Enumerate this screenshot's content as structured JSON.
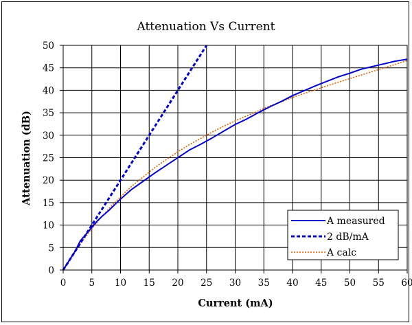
{
  "chart_data": {
    "type": "line",
    "title": "Attenuation Vs Current",
    "xlabel": "Current (mA)",
    "ylabel": "Attenuation (dB)",
    "xlim": [
      0,
      60
    ],
    "ylim": [
      0,
      50
    ],
    "x_ticks": [
      "0",
      "5",
      "10",
      "15",
      "20",
      "25",
      "30",
      "35",
      "40",
      "45",
      "50",
      "55",
      "60"
    ],
    "y_ticks": [
      "0",
      "5",
      "10",
      "15",
      "20",
      "25",
      "30",
      "35",
      "40",
      "45",
      "50"
    ],
    "grid": true,
    "legend_position": "bottom-right",
    "series": [
      {
        "name": "A measured",
        "color": "#0000cc",
        "style": "solid",
        "x": [
          0,
          1,
          2,
          3,
          4,
          5,
          6,
          7,
          8,
          10,
          12,
          14,
          16,
          18,
          20,
          22,
          24,
          26,
          28,
          30,
          32,
          34,
          36,
          38,
          40,
          42,
          44,
          46,
          48,
          50,
          52,
          54,
          56,
          58,
          60
        ],
        "y": [
          0,
          2,
          4,
          6.5,
          8,
          9.5,
          11,
          12.2,
          13.3,
          15.8,
          18,
          19.8,
          21.6,
          23.3,
          25,
          26.7,
          28,
          29.4,
          30.9,
          32.4,
          33.6,
          35,
          36.3,
          37.5,
          38.8,
          39.9,
          41,
          42,
          43,
          43.8,
          44.7,
          45.3,
          45.9,
          46.5,
          46.9
        ]
      },
      {
        "name": "2 dB/mA",
        "color": "#0000cc",
        "style": "dashed",
        "x": [
          0,
          25
        ],
        "y": [
          0,
          50
        ]
      },
      {
        "name": "A calc",
        "color": "#e06000",
        "style": "dotted",
        "x": [
          0,
          2,
          4,
          6,
          8,
          10,
          12,
          14,
          16,
          18,
          20,
          22,
          24,
          26,
          28,
          30,
          32,
          34,
          36,
          38,
          40,
          42,
          44,
          46,
          48,
          50,
          52,
          54,
          56,
          58,
          60
        ],
        "y": [
          0,
          3.9,
          7.6,
          10.8,
          13.7,
          16.3,
          18.7,
          20.8,
          22.8,
          24.6,
          26.3,
          27.9,
          29.3,
          30.7,
          32,
          33.2,
          34.3,
          35.4,
          36.5,
          37.4,
          38.4,
          39.3,
          40.1,
          41,
          41.8,
          42.6,
          43.4,
          44.2,
          45,
          45.8,
          46.6
        ]
      }
    ]
  }
}
